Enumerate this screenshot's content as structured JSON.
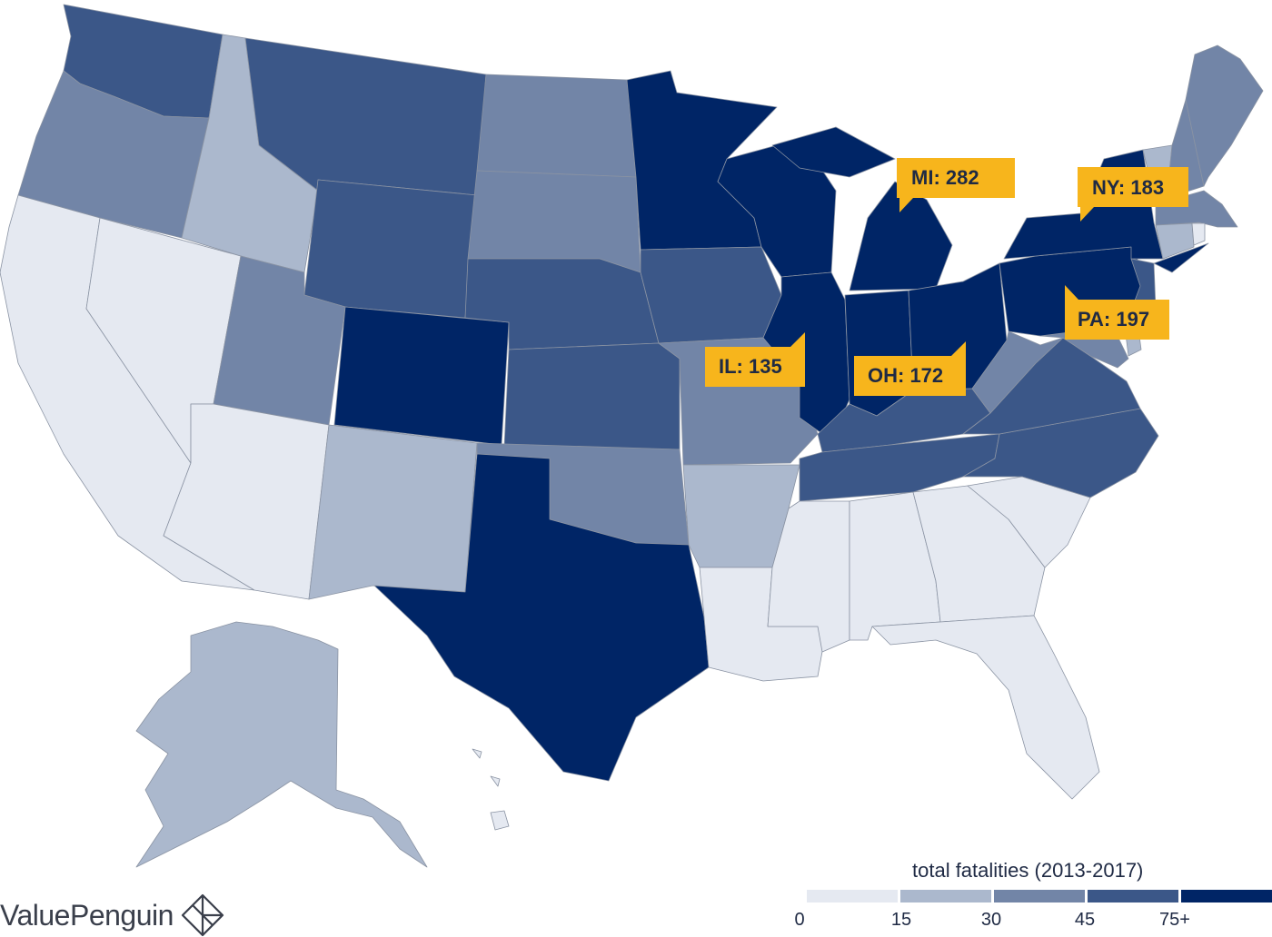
{
  "colors": {
    "bucket_0_15": "#e5e9f1",
    "bucket_15_30": "#abb8cd",
    "bucket_30_45": "#7285a7",
    "bucket_45_75": "#3b5788",
    "bucket_75_plus": "#002566",
    "callout_bg": "#f7b51c",
    "text": "#1f2a44"
  },
  "legend": {
    "title": "total fatalities (2013-2017)",
    "ticks": [
      "0",
      "15",
      "30",
      "45",
      "75+"
    ]
  },
  "callouts": [
    {
      "state": "MI",
      "label": "MI: 282"
    },
    {
      "state": "NY",
      "label": "NY: 183"
    },
    {
      "state": "PA",
      "label": "PA: 197"
    },
    {
      "state": "IL",
      "label": "IL: 135"
    },
    {
      "state": "OH",
      "label": "OH: 172"
    }
  ],
  "states": [
    {
      "id": "WA",
      "bucket": "bucket_45_75"
    },
    {
      "id": "OR",
      "bucket": "bucket_30_45"
    },
    {
      "id": "CA",
      "bucket": "bucket_0_15"
    },
    {
      "id": "NV",
      "bucket": "bucket_0_15"
    },
    {
      "id": "ID",
      "bucket": "bucket_15_30"
    },
    {
      "id": "MT",
      "bucket": "bucket_45_75"
    },
    {
      "id": "WY",
      "bucket": "bucket_45_75"
    },
    {
      "id": "UT",
      "bucket": "bucket_30_45"
    },
    {
      "id": "AZ",
      "bucket": "bucket_0_15"
    },
    {
      "id": "CO",
      "bucket": "bucket_75_plus"
    },
    {
      "id": "NM",
      "bucket": "bucket_15_30"
    },
    {
      "id": "ND",
      "bucket": "bucket_30_45"
    },
    {
      "id": "SD",
      "bucket": "bucket_30_45"
    },
    {
      "id": "NE",
      "bucket": "bucket_45_75"
    },
    {
      "id": "KS",
      "bucket": "bucket_45_75"
    },
    {
      "id": "OK",
      "bucket": "bucket_30_45"
    },
    {
      "id": "TX",
      "bucket": "bucket_75_plus"
    },
    {
      "id": "MN",
      "bucket": "bucket_75_plus"
    },
    {
      "id": "IA",
      "bucket": "bucket_45_75"
    },
    {
      "id": "MO",
      "bucket": "bucket_30_45"
    },
    {
      "id": "AR",
      "bucket": "bucket_15_30"
    },
    {
      "id": "LA",
      "bucket": "bucket_0_15"
    },
    {
      "id": "WI",
      "bucket": "bucket_75_plus"
    },
    {
      "id": "IL",
      "bucket": "bucket_75_plus"
    },
    {
      "id": "MI",
      "bucket": "bucket_75_plus"
    },
    {
      "id": "IN",
      "bucket": "bucket_75_plus"
    },
    {
      "id": "OH",
      "bucket": "bucket_75_plus"
    },
    {
      "id": "KY",
      "bucket": "bucket_45_75"
    },
    {
      "id": "TN",
      "bucket": "bucket_45_75"
    },
    {
      "id": "MS",
      "bucket": "bucket_0_15"
    },
    {
      "id": "AL",
      "bucket": "bucket_0_15"
    },
    {
      "id": "GA",
      "bucket": "bucket_0_15"
    },
    {
      "id": "FL",
      "bucket": "bucket_0_15"
    },
    {
      "id": "SC",
      "bucket": "bucket_0_15"
    },
    {
      "id": "NC",
      "bucket": "bucket_45_75"
    },
    {
      "id": "VA",
      "bucket": "bucket_45_75"
    },
    {
      "id": "WV",
      "bucket": "bucket_30_45"
    },
    {
      "id": "MD",
      "bucket": "bucket_30_45"
    },
    {
      "id": "DE",
      "bucket": "bucket_15_30"
    },
    {
      "id": "NJ",
      "bucket": "bucket_45_75"
    },
    {
      "id": "PA",
      "bucket": "bucket_75_plus"
    },
    {
      "id": "NY",
      "bucket": "bucket_75_plus"
    },
    {
      "id": "VT",
      "bucket": "bucket_15_30"
    },
    {
      "id": "NH",
      "bucket": "bucket_30_45"
    },
    {
      "id": "ME",
      "bucket": "bucket_30_45"
    },
    {
      "id": "MA",
      "bucket": "bucket_30_45"
    },
    {
      "id": "CT",
      "bucket": "bucket_15_30"
    },
    {
      "id": "RI",
      "bucket": "bucket_0_15"
    },
    {
      "id": "AK",
      "bucket": "bucket_15_30"
    },
    {
      "id": "HI",
      "bucket": "bucket_0_15"
    }
  ],
  "brand": {
    "name": "ValuePenguin"
  }
}
